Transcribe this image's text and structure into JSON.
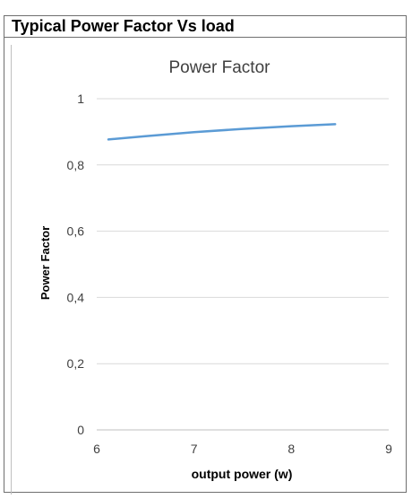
{
  "header": {
    "title": "Typical Power Factor Vs load"
  },
  "chart_data": {
    "type": "line",
    "title": "Power Factor",
    "xlabel": "output power (w)",
    "ylabel": "Power Factor",
    "xlim": [
      6,
      9
    ],
    "ylim": [
      0,
      1
    ],
    "x_ticks": [
      "6",
      "7",
      "8",
      "9"
    ],
    "y_ticks": [
      "0",
      "0,2",
      "0,4",
      "0,6",
      "0,8",
      "1"
    ],
    "grid": true,
    "legend": "none",
    "series": [
      {
        "color": "#5b9bd5",
        "x": [
          6.12,
          6.5,
          7.0,
          7.5,
          8.0,
          8.45
        ],
        "y": [
          0.877,
          0.887,
          0.899,
          0.909,
          0.917,
          0.923
        ]
      }
    ]
  }
}
